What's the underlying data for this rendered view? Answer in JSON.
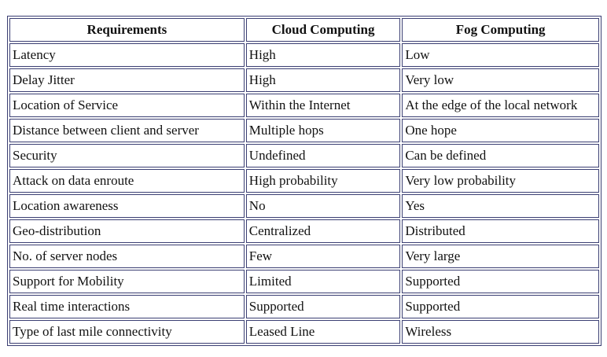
{
  "table": {
    "headers": [
      "Requirements",
      "Cloud Computing",
      "Fog Computing"
    ],
    "rows": [
      [
        "Latency",
        "High",
        "Low"
      ],
      [
        "Delay Jitter",
        "High",
        "Very low"
      ],
      [
        "Location of Service",
        "Within the Internet",
        "At the edge of the local network"
      ],
      [
        "Distance between client and server",
        "Multiple hops",
        "One hope"
      ],
      [
        "Security",
        "Undefined",
        "Can be defined"
      ],
      [
        "Attack on data enroute",
        "High probability",
        "Very low probability"
      ],
      [
        "Location awareness",
        "No",
        "Yes"
      ],
      [
        "Geo-distribution",
        "Centralized",
        "Distributed"
      ],
      [
        "No. of server nodes",
        "Few",
        "Very large"
      ],
      [
        "Support for Mobility",
        "Limited",
        "Supported"
      ],
      [
        "Real time interactions",
        "Supported",
        "Supported"
      ],
      [
        "Type of last mile connectivity",
        "Leased Line",
        "Wireless"
      ]
    ]
  },
  "colors": {
    "border": "#3b3f73",
    "text": "#111111",
    "background": "#ffffff"
  }
}
